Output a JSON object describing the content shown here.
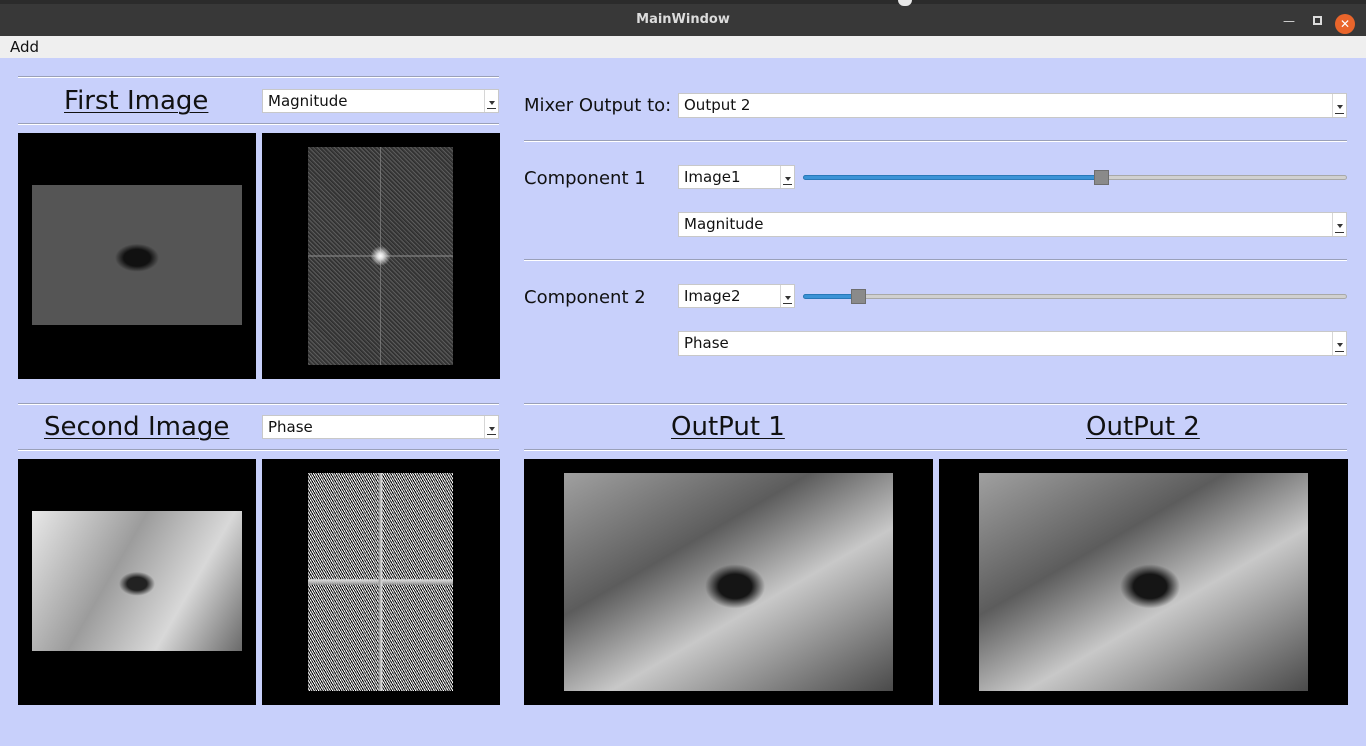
{
  "window": {
    "title": "MainWindow"
  },
  "menu": {
    "items": [
      "Add"
    ]
  },
  "first_image": {
    "title": "First Image",
    "mode": "Magnitude"
  },
  "second_image": {
    "title": "Second Image",
    "mode": "Phase"
  },
  "mixer": {
    "output_label": "Mixer Output to:",
    "output_value": "Output 2",
    "component1": {
      "label": "Component 1",
      "image": "Image1",
      "slider_value": 0.55,
      "mode": "Magnitude"
    },
    "component2": {
      "label": "Component 2",
      "image": "Image2",
      "slider_value": 0.09,
      "mode": "Phase"
    }
  },
  "outputs": {
    "output1_title": "OutPut 1",
    "output2_title": "OutPut 2"
  },
  "colors": {
    "background": "#c8d0fb",
    "slider_fill": "#3b93d6",
    "close_button": "#e9652b"
  },
  "icons": {
    "minimize": "minimize-icon",
    "maximize": "maximize-icon",
    "close": "close-icon"
  }
}
